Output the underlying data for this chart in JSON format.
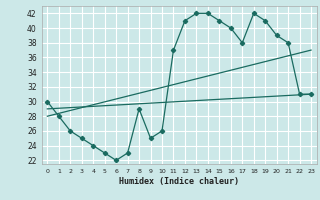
{
  "xlabel": "Humidex (Indice chaleur)",
  "bg_color": "#cce8e8",
  "grid_color": "#ffffff",
  "line_color": "#1a6b60",
  "xlim": [
    -0.5,
    23.5
  ],
  "ylim": [
    21.5,
    43
  ],
  "xticks": [
    0,
    1,
    2,
    3,
    4,
    5,
    6,
    7,
    8,
    9,
    10,
    11,
    12,
    13,
    14,
    15,
    16,
    17,
    18,
    19,
    20,
    21,
    22,
    23
  ],
  "yticks": [
    22,
    24,
    26,
    28,
    30,
    32,
    34,
    36,
    38,
    40,
    42
  ],
  "line1_x": [
    0,
    1,
    2,
    3,
    4,
    5,
    6,
    7,
    8,
    9,
    10,
    11,
    12,
    13,
    14,
    15,
    16,
    17,
    18,
    19,
    20,
    21,
    22,
    23
  ],
  "line1_y": [
    30,
    28,
    26,
    25,
    24,
    23,
    22,
    23,
    29,
    25,
    26,
    37,
    41,
    42,
    42,
    41,
    40,
    38,
    42,
    41,
    39,
    38,
    31,
    31
  ],
  "line2_x": [
    0,
    23
  ],
  "line2_y": [
    29,
    31
  ],
  "line3_x": [
    0,
    23
  ],
  "line3_y": [
    28,
    37
  ]
}
